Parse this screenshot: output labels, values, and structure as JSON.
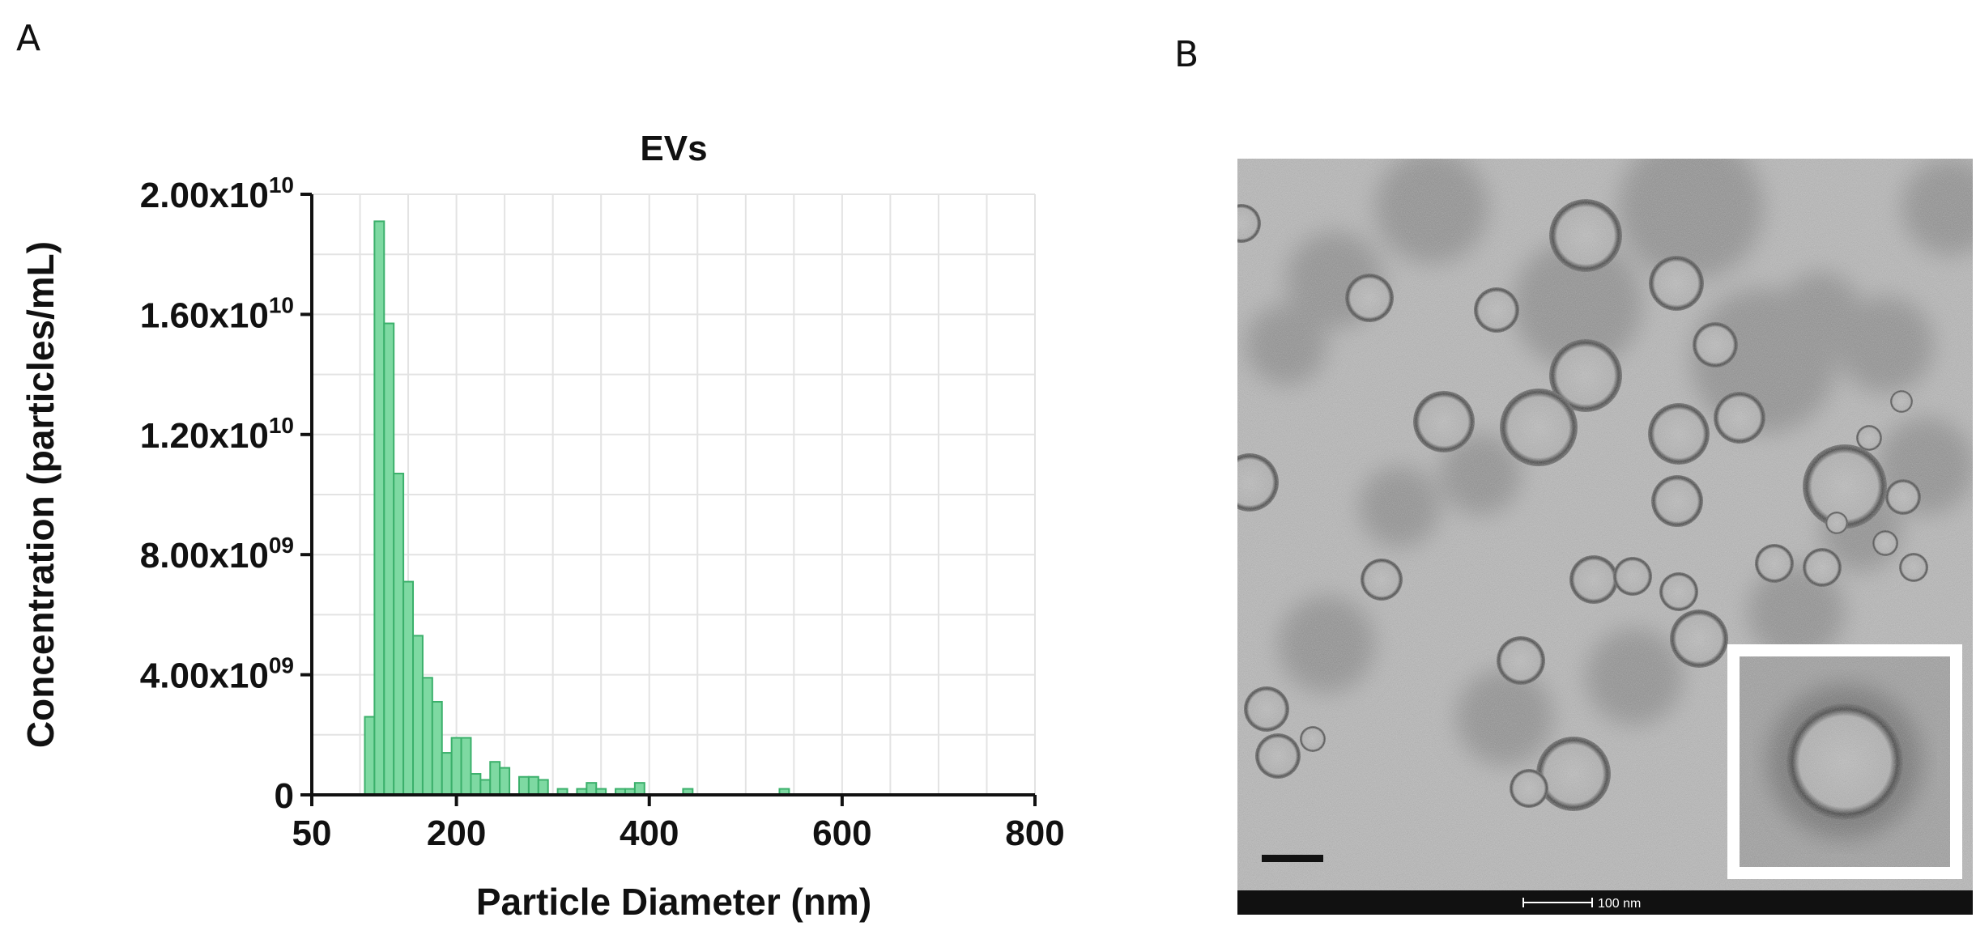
{
  "panels": {
    "a_label": "A",
    "b_label": "B"
  },
  "chart_data": {
    "type": "bar",
    "title": "EVs",
    "xlabel": "Particle Diameter (nm)",
    "ylabel": "Concentration (particles/mL)",
    "xlim": [
      50,
      800
    ],
    "ylim": [
      0,
      20000000000
    ],
    "x_ticks": [
      {
        "value": 50,
        "label": "50"
      },
      {
        "value": 200,
        "label": "200"
      },
      {
        "value": 400,
        "label": "400"
      },
      {
        "value": 600,
        "label": "600"
      },
      {
        "value": 800,
        "label": "800"
      }
    ],
    "y_ticks": [
      {
        "value": 0,
        "base": "0",
        "exp": ""
      },
      {
        "value": 4000000000,
        "base": "4.00x10",
        "exp": "09"
      },
      {
        "value": 8000000000,
        "base": "8.00x10",
        "exp": "09"
      },
      {
        "value": 12000000000,
        "base": "1.20x10",
        "exp": "10"
      },
      {
        "value": 16000000000,
        "base": "1.60x10",
        "exp": "10"
      },
      {
        "value": 20000000000,
        "base": "2.00x10",
        "exp": "10"
      }
    ],
    "bin_width": 10,
    "grid": true,
    "bars": [
      {
        "x": 110,
        "y": 2600000000
      },
      {
        "x": 120,
        "y": 19100000000
      },
      {
        "x": 130,
        "y": 15700000000
      },
      {
        "x": 140,
        "y": 10700000000
      },
      {
        "x": 150,
        "y": 7100000000
      },
      {
        "x": 160,
        "y": 5300000000
      },
      {
        "x": 170,
        "y": 3900000000
      },
      {
        "x": 180,
        "y": 3100000000
      },
      {
        "x": 190,
        "y": 1400000000
      },
      {
        "x": 200,
        "y": 1900000000
      },
      {
        "x": 210,
        "y": 1900000000
      },
      {
        "x": 220,
        "y": 700000000
      },
      {
        "x": 230,
        "y": 500000000
      },
      {
        "x": 240,
        "y": 1100000000
      },
      {
        "x": 250,
        "y": 900000000
      },
      {
        "x": 270,
        "y": 600000000
      },
      {
        "x": 280,
        "y": 600000000
      },
      {
        "x": 290,
        "y": 500000000
      },
      {
        "x": 310,
        "y": 200000000
      },
      {
        "x": 330,
        "y": 200000000
      },
      {
        "x": 340,
        "y": 400000000
      },
      {
        "x": 350,
        "y": 200000000
      },
      {
        "x": 370,
        "y": 200000000
      },
      {
        "x": 380,
        "y": 200000000
      },
      {
        "x": 390,
        "y": 400000000
      },
      {
        "x": 440,
        "y": 200000000
      },
      {
        "x": 540,
        "y": 200000000
      }
    ]
  },
  "tem_image": {
    "scale_bar_text": "100 nm"
  }
}
